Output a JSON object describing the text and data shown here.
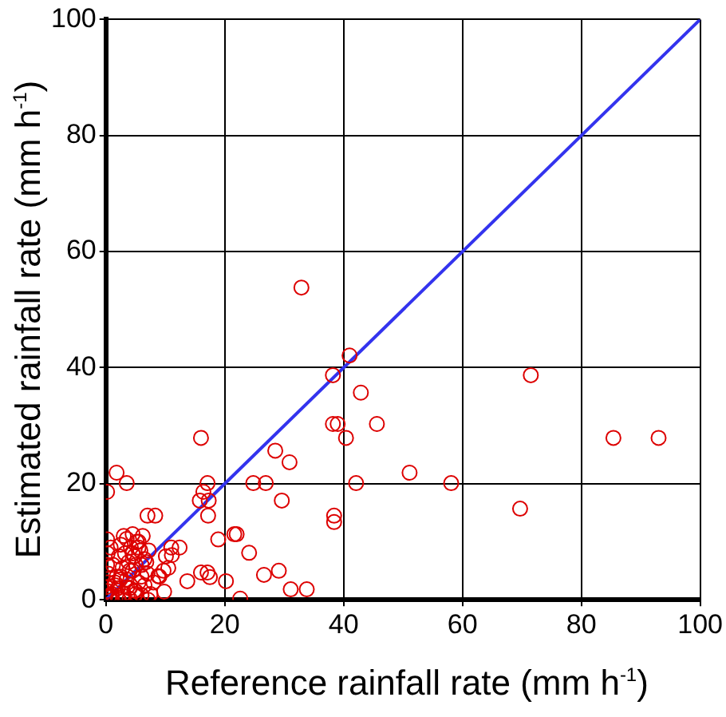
{
  "chart_data": {
    "type": "scatter",
    "xlabel": "Reference rainfall rate (mm h$^{-1}$)",
    "ylabel": "Estimated rainfall rate (mm h$^{-1}$)",
    "xlim": [
      0,
      100
    ],
    "ylim": [
      0,
      100
    ],
    "xticks": [
      0,
      20,
      40,
      60,
      80,
      100
    ],
    "yticks": [
      0,
      20,
      40,
      60,
      80,
      100
    ],
    "grid": true,
    "legend": false,
    "marker": "circle",
    "series": [
      {
        "color": "#dd0000",
        "x": [
          32.9,
          41.0,
          38.2,
          71.5,
          42.9,
          38.2,
          39.0,
          45.6,
          40.4,
          16.0,
          85.4,
          93.0,
          28.5,
          30.9,
          51.1,
          1.8,
          3.5,
          17.1,
          24.8,
          26.9,
          42.1,
          58.1,
          0.2,
          16.4,
          15.8,
          17.3,
          29.6,
          69.7,
          17.2,
          38.4,
          38.4,
          7.0,
          8.3,
          22.0,
          21.6,
          18.9,
          24.1,
          12.4,
          11.0,
          11.1,
          10.1,
          16.0,
          17.5,
          17.1,
          20.2,
          13.7,
          26.6,
          29.1,
          31.1,
          33.8,
          22.6,
          9.7,
          9.8,
          8.8,
          7.1,
          2.2,
          0.2,
          0.3,
          0.2,
          0.4,
          0.3,
          0.2,
          0.5,
          0.1,
          1.0,
          1.5,
          2.0,
          2.5,
          3.0,
          3.5,
          4.0,
          4.5,
          5.0,
          5.5,
          6.0,
          6.5,
          7.0,
          7.5,
          1.2,
          2.2,
          3.2,
          4.2,
          5.2,
          6.2,
          7.2,
          1.8,
          2.8,
          3.8,
          4.8,
          5.8,
          6.8,
          2.5,
          3.5,
          4.5,
          5.5,
          6.5,
          3.0,
          4.0,
          5.0,
          6.0,
          4.5,
          5.5,
          1.0,
          2.0,
          3.0,
          4.0,
          5.0,
          6.0,
          8.0,
          9.0,
          10.5,
          1.5,
          0.8,
          2.4,
          3.6,
          4.8
        ],
        "values": [
          53.8,
          42.1,
          38.7,
          38.7,
          35.7,
          30.3,
          30.3,
          30.3,
          27.9,
          27.9,
          27.9,
          27.9,
          25.7,
          23.7,
          21.9,
          21.9,
          20.1,
          20.1,
          20.1,
          20.1,
          20.1,
          20.1,
          18.6,
          18.6,
          17.1,
          17.1,
          17.1,
          15.7,
          14.5,
          14.5,
          13.4,
          14.5,
          14.5,
          11.3,
          11.3,
          10.4,
          8.1,
          9.0,
          9.0,
          7.7,
          7.5,
          4.7,
          3.9,
          4.7,
          3.2,
          3.2,
          4.3,
          5.0,
          1.8,
          1.8,
          0.2,
          5.0,
          1.4,
          4.1,
          0.0,
          0.0,
          10.4,
          8.0,
          6.0,
          4.5,
          3.0,
          1.5,
          0.5,
          2.2,
          1.0,
          3.0,
          2.0,
          4.0,
          1.0,
          3.5,
          2.0,
          5.0,
          1.5,
          3.0,
          6.0,
          2.5,
          4.5,
          1.0,
          6.0,
          7.5,
          8.0,
          9.0,
          10.0,
          11.0,
          8.5,
          4.0,
          5.5,
          6.5,
          7.5,
          8.5,
          6.5,
          9.5,
          10.5,
          11.3,
          9.0,
          7.0,
          11.0,
          5.0,
          6.0,
          4.0,
          8.0,
          10.0,
          0.5,
          0.3,
          0.6,
          0.2,
          1.0,
          0.8,
          3.0,
          4.0,
          5.5,
          2.5,
          9.0,
          3.5,
          2.2,
          1.6
        ]
      },
      {
        "type": "line",
        "color": "#3333ee",
        "marker": "none",
        "x": [
          0,
          100
        ],
        "values": [
          0,
          100
        ]
      }
    ]
  }
}
